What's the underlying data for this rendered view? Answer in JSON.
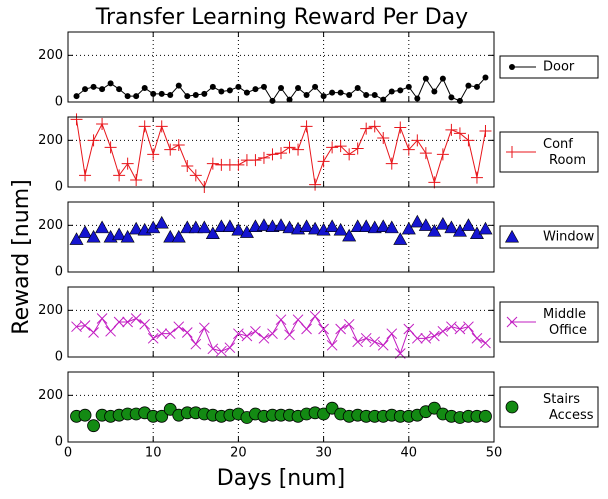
{
  "chart_data": {
    "type": "line",
    "title": "Transfer Learning Reward Per Day",
    "xlabel": "Days [num]",
    "ylabel": "Reward [num]",
    "x": [
      1,
      2,
      3,
      4,
      5,
      6,
      7,
      8,
      9,
      10,
      11,
      12,
      13,
      14,
      15,
      16,
      17,
      18,
      19,
      20,
      21,
      22,
      23,
      24,
      25,
      26,
      27,
      28,
      29,
      30,
      31,
      32,
      33,
      34,
      35,
      36,
      37,
      38,
      39,
      40,
      41,
      42,
      43,
      44,
      45,
      46,
      47,
      48,
      49
    ],
    "xlim": [
      0,
      50
    ],
    "xticks": [
      0,
      10,
      20,
      30,
      40,
      50
    ],
    "ylim": [
      0,
      300
    ],
    "yticks": [
      0,
      200
    ],
    "grid": true,
    "series": [
      {
        "name": "Door",
        "color": "#000000",
        "marker": "o",
        "line": true,
        "values": [
          25,
          55,
          65,
          55,
          80,
          55,
          25,
          25,
          60,
          35,
          35,
          30,
          70,
          25,
          30,
          35,
          65,
          45,
          50,
          65,
          40,
          55,
          65,
          5,
          60,
          10,
          60,
          30,
          65,
          25,
          40,
          40,
          30,
          60,
          30,
          30,
          10,
          45,
          50,
          65,
          15,
          100,
          45,
          100,
          20,
          5,
          70,
          65,
          105
        ]
      },
      {
        "name": "Conf Room",
        "color": "#e8161b",
        "marker": "+",
        "line": true,
        "values": [
          290,
          50,
          200,
          270,
          170,
          50,
          100,
          30,
          260,
          140,
          260,
          160,
          180,
          90,
          50,
          0,
          100,
          95,
          95,
          95,
          115,
          115,
          125,
          140,
          145,
          170,
          160,
          260,
          10,
          110,
          170,
          175,
          140,
          165,
          250,
          260,
          210,
          100,
          255,
          160,
          200,
          145,
          20,
          140,
          245,
          230,
          200,
          40,
          240
        ]
      },
      {
        "name": "Window",
        "color": "#1515d0",
        "marker": "^",
        "line": false,
        "values": [
          140,
          170,
          150,
          190,
          150,
          160,
          150,
          185,
          180,
          190,
          210,
          150,
          150,
          190,
          190,
          190,
          165,
          195,
          195,
          180,
          170,
          195,
          200,
          195,
          200,
          190,
          185,
          195,
          185,
          180,
          195,
          180,
          155,
          195,
          195,
          190,
          195,
          190,
          140,
          185,
          215,
          200,
          175,
          205,
          190,
          175,
          200,
          165,
          185
        ]
      },
      {
        "name": "Middle Office",
        "color": "#c21cc2",
        "marker": "x",
        "line": true,
        "values": [
          130,
          135,
          105,
          165,
          110,
          150,
          150,
          165,
          140,
          80,
          100,
          100,
          130,
          105,
          55,
          125,
          35,
          25,
          40,
          100,
          90,
          110,
          80,
          100,
          160,
          95,
          160,
          120,
          175,
          120,
          50,
          120,
          140,
          65,
          80,
          65,
          50,
          100,
          15,
          120,
          80,
          80,
          90,
          110,
          130,
          120,
          130,
          80,
          60
        ]
      },
      {
        "name": "Stairs Access",
        "color": "#138a13",
        "marker": "o",
        "line": false,
        "values": [
          110,
          115,
          70,
          115,
          110,
          115,
          120,
          120,
          125,
          110,
          110,
          140,
          115,
          125,
          125,
          120,
          115,
          110,
          115,
          120,
          105,
          120,
          110,
          115,
          115,
          115,
          110,
          120,
          125,
          120,
          145,
          120,
          110,
          115,
          110,
          110,
          110,
          115,
          110,
          110,
          115,
          130,
          145,
          120,
          110,
          105,
          110,
          110,
          110
        ]
      }
    ]
  }
}
